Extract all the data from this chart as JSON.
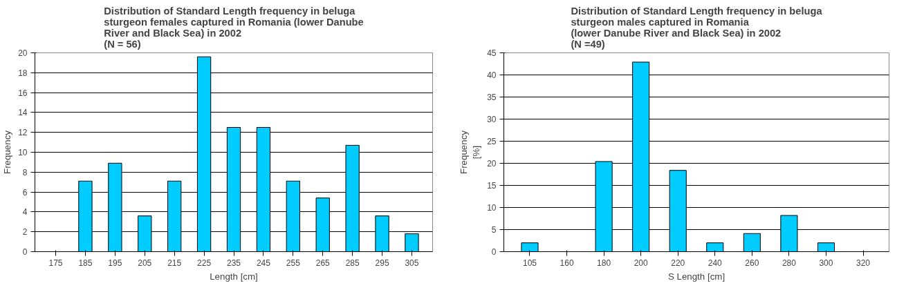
{
  "chart_data": [
    {
      "type": "bar",
      "title": "Distribution of Standard Length frequency in beluga\nsturgeon females captured in Romania (lower Danube\nRiver and Black Sea) in 2002\n(N = 56)",
      "xlabel": "Length [cm]",
      "ylabel": "Frequency",
      "categories": [
        "175",
        "185",
        "195",
        "205",
        "215",
        "225",
        "235",
        "245",
        "255",
        "265",
        "285",
        "295",
        "305"
      ],
      "values": [
        0,
        7.1,
        8.9,
        3.6,
        7.1,
        19.6,
        12.5,
        12.5,
        7.1,
        5.4,
        10.7,
        3.6,
        1.8
      ],
      "color": "#00ccff",
      "ylim": [
        0,
        20
      ],
      "yticks": [
        0,
        2,
        4,
        6,
        8,
        10,
        12,
        14,
        16,
        18,
        20
      ],
      "grid": "y"
    },
    {
      "type": "bar",
      "title": "Distribution of Standard Length frequency in beluga\nsturgeon males captured in Romania\n(lower Danube River and Black Sea) in 2002\n(N =49)",
      "xlabel": "S Length [cm]",
      "ylabel": "Frequency\n[%]",
      "categories": [
        "105",
        "160",
        "180",
        "200",
        "220",
        "240",
        "260",
        "280",
        "300",
        "320"
      ],
      "values": [
        2.0,
        0,
        20.4,
        42.9,
        18.4,
        2.0,
        4.1,
        8.2,
        2.0,
        0
      ],
      "color": "#00ccff",
      "ylim": [
        0,
        45
      ],
      "yticks": [
        0,
        5,
        10,
        15,
        20,
        25,
        30,
        35,
        40,
        45
      ],
      "grid": "y"
    }
  ]
}
